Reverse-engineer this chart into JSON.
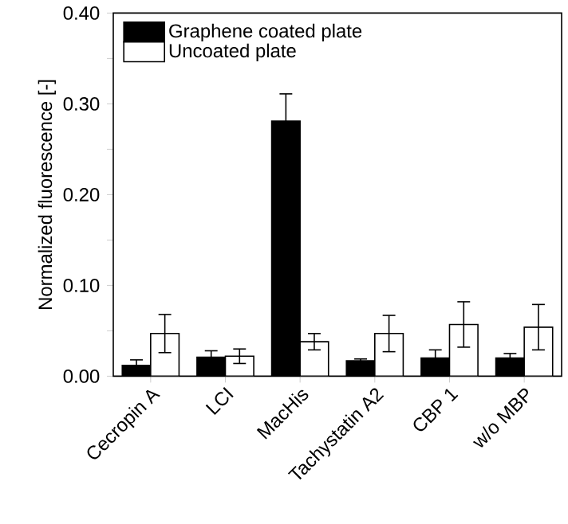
{
  "chart_data": {
    "type": "bar",
    "categories": [
      "Cecropin A",
      "LCI",
      "MacHis",
      "Tachystatin A2",
      "CBP 1",
      "w/o MBP"
    ],
    "series": [
      {
        "name": "Graphene coated plate",
        "color": "#000000",
        "values": [
          0.012,
          0.021,
          0.281,
          0.017,
          0.02,
          0.02
        ],
        "errors": [
          0.006,
          0.007,
          0.03,
          0.002,
          0.009,
          0.005
        ]
      },
      {
        "name": "Uncoated plate",
        "color": "#ffffff",
        "values": [
          0.047,
          0.022,
          0.038,
          0.047,
          0.057,
          0.054
        ],
        "errors": [
          0.021,
          0.008,
          0.009,
          0.02,
          0.025,
          0.025
        ]
      }
    ],
    "ylabel": "Normalized fluorescence [-]",
    "ylim": [
      0,
      0.4
    ],
    "yticks": [
      {
        "value": 0,
        "label": "0.00"
      },
      {
        "value": 0.05,
        "label": null
      },
      {
        "value": 0.1,
        "label": "0.10"
      },
      {
        "value": 0.15,
        "label": null
      },
      {
        "value": 0.2,
        "label": "0.20"
      },
      {
        "value": 0.25,
        "label": null
      },
      {
        "value": 0.3,
        "label": "0.30"
      },
      {
        "value": 0.35,
        "label": null
      },
      {
        "value": 0.4,
        "label": "0.40"
      }
    ],
    "legend": "top left"
  }
}
